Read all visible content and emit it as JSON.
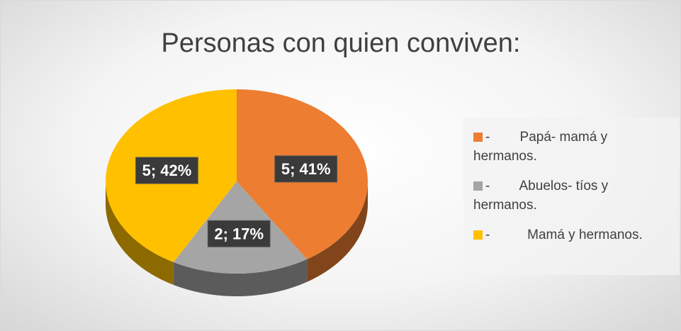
{
  "chart_data": {
    "type": "pie",
    "title": "Personas con quien conviven:",
    "categories": [
      "-        Papá- mamá y hermanos.",
      "-        Abuelos- tíos y hermanos.",
      "-          Mamá y hermanos."
    ],
    "values": [
      41,
      17,
      42
    ],
    "value_labels": [
      "5; 41%",
      "2; 17%",
      "5; 42%"
    ],
    "colors": [
      "#ed7d31",
      "#a5a5a5",
      "#ffc000"
    ],
    "legend": "right"
  }
}
